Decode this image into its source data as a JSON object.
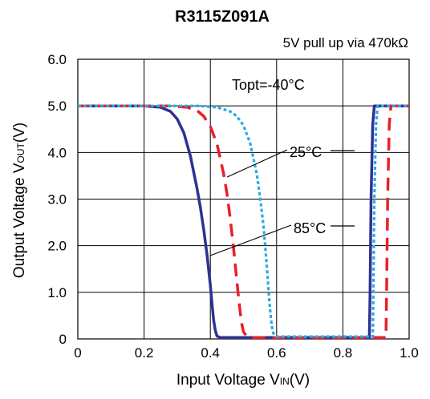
{
  "chart_data": {
    "type": "line",
    "title": "R3115Z091A",
    "subtitle": "5V pull up via 470kΩ",
    "xlabel": {
      "main": "Input Voltage V",
      "sub": "IN",
      "unit": "(V)"
    },
    "ylabel": {
      "main": "Output Voltage V",
      "sub": "OUT",
      "unit": "(V)"
    },
    "xlim": [
      0,
      1.0
    ],
    "ylim": [
      0,
      6.0
    ],
    "xticks": [
      "0",
      "0.2",
      "0.4",
      "0.6",
      "0.8",
      "1.0"
    ],
    "yticks": [
      "0",
      "1.0",
      "2.0",
      "3.0",
      "4.0",
      "5.0",
      "6.0"
    ],
    "grid": true,
    "annotations": {
      "topt": "Topt=-40°C",
      "t25": "25°C",
      "t85": "85°C"
    },
    "series": [
      {
        "color": "#2e3192",
        "style": "solid",
        "x": [
          0.0,
          0.2,
          0.25,
          0.28,
          0.3,
          0.32,
          0.34,
          0.36,
          0.37,
          0.38,
          0.39,
          0.4,
          0.405,
          0.41,
          0.415,
          0.42,
          0.43,
          0.88,
          0.882,
          0.885,
          0.89,
          0.895,
          1.0
        ],
        "y": [
          5.0,
          5.0,
          4.97,
          4.88,
          4.72,
          4.42,
          3.92,
          3.22,
          2.82,
          2.35,
          1.8,
          1.15,
          0.75,
          0.4,
          0.18,
          0.06,
          0.03,
          0.03,
          1.0,
          3.0,
          4.6,
          5.0,
          5.0
        ]
      },
      {
        "color": "#e8202a",
        "style": "dashed",
        "x": [
          0.0,
          0.28,
          0.33,
          0.36,
          0.38,
          0.4,
          0.42,
          0.44,
          0.45,
          0.46,
          0.47,
          0.48,
          0.485,
          0.49,
          0.495,
          0.5,
          0.51,
          0.52,
          0.93,
          0.932,
          0.935,
          0.94,
          0.945,
          1.0
        ],
        "y": [
          5.0,
          5.0,
          4.97,
          4.9,
          4.78,
          4.56,
          4.18,
          3.55,
          3.12,
          2.58,
          1.95,
          1.25,
          0.9,
          0.58,
          0.32,
          0.15,
          0.06,
          0.03,
          0.03,
          1.0,
          3.0,
          4.6,
          5.0,
          5.0
        ]
      },
      {
        "color": "#29abe2",
        "style": "dotted",
        "x": [
          0.0,
          0.36,
          0.42,
          0.46,
          0.48,
          0.5,
          0.52,
          0.54,
          0.55,
          0.56,
          0.565,
          0.57,
          0.575,
          0.58,
          0.585,
          0.59,
          0.6,
          0.89,
          0.892,
          0.895,
          0.9,
          0.905,
          1.0
        ],
        "y": [
          5.0,
          5.0,
          4.97,
          4.88,
          4.78,
          4.58,
          4.2,
          3.55,
          3.05,
          2.45,
          2.05,
          1.6,
          1.1,
          0.65,
          0.3,
          0.12,
          0.05,
          0.05,
          1.0,
          3.0,
          4.6,
          5.0,
          5.0
        ]
      }
    ]
  }
}
